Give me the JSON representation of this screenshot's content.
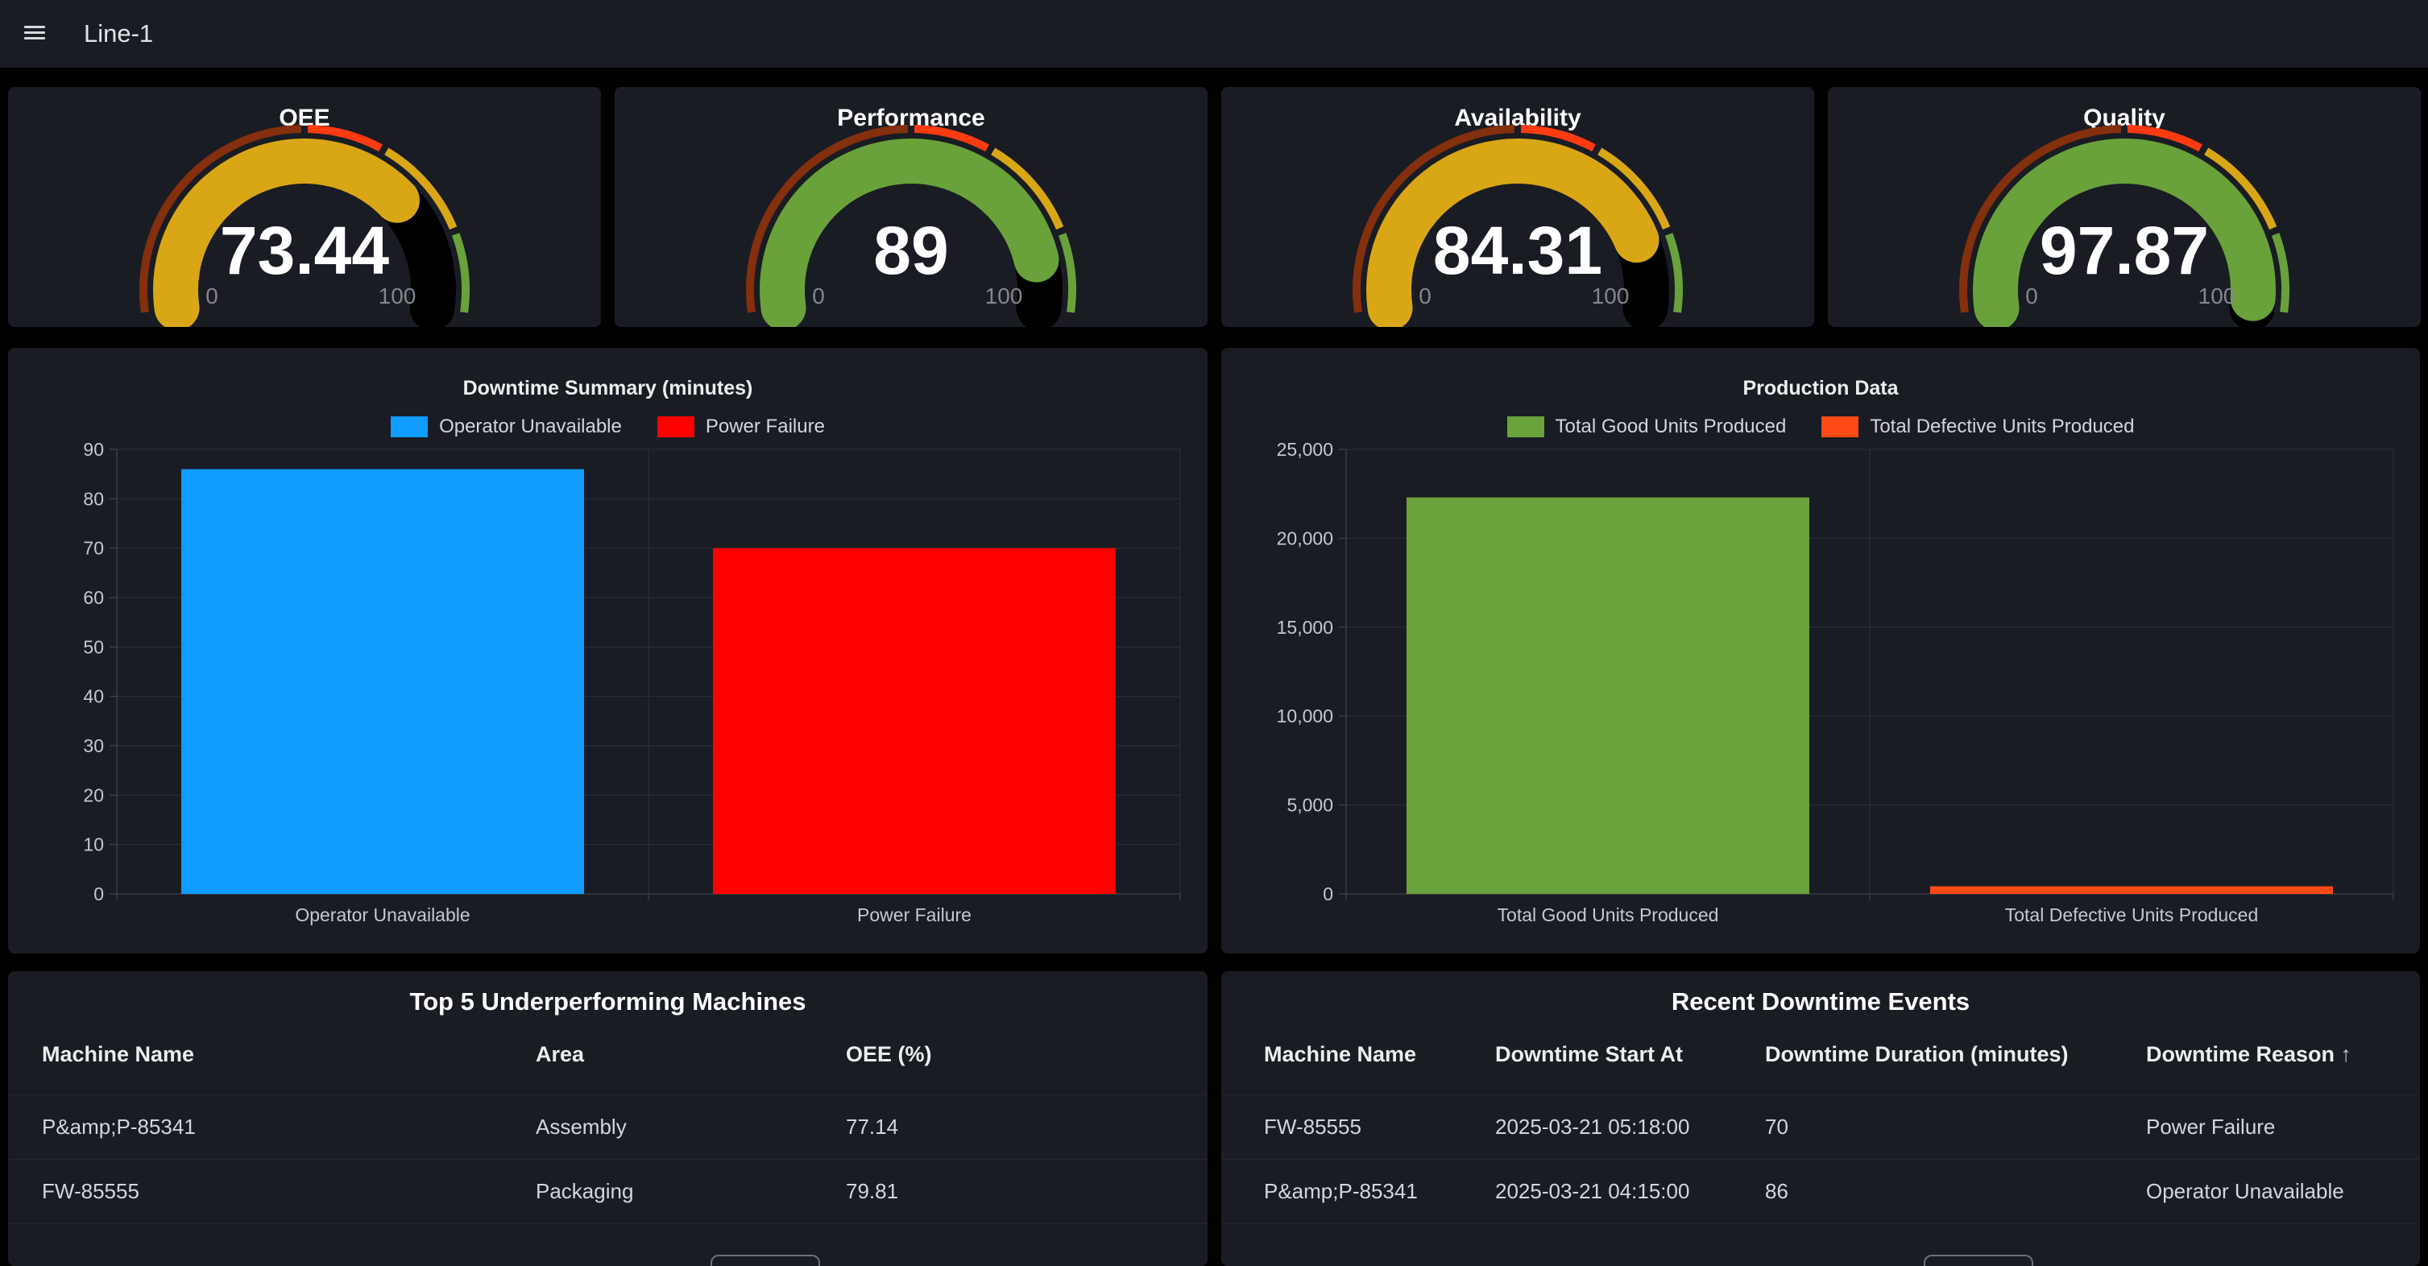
{
  "nav": {
    "title": "Line-1"
  },
  "colors": {
    "page_bg": "#000000",
    "panel_bg": "#191c23",
    "text_primary": "#ffffff",
    "text_secondary": "#c7c8ce",
    "text_muted": "#85878e",
    "grid_line": "#2e3138",
    "axis_line": "#4a4d55",
    "row_separator": "#25272e",
    "gauge_track": "#000000"
  },
  "gauge_thresholds": [
    {
      "to": 50,
      "color": "#842f0d"
    },
    {
      "to": 65,
      "color": "#ff3b12"
    },
    {
      "to": 85,
      "color": "#d9a616"
    },
    {
      "to": 100,
      "color": "#69a23a"
    }
  ],
  "gauges": [
    {
      "title": "OEE",
      "value": 73.44,
      "display": "73.44",
      "arc_color": "#d9a616",
      "min_label": "0",
      "max_label": "100"
    },
    {
      "title": "Performance",
      "value": 89,
      "display": "89",
      "arc_color": "#69a23a",
      "min_label": "0",
      "max_label": "100"
    },
    {
      "title": "Availability",
      "value": 84.31,
      "display": "84.31",
      "arc_color": "#d9a616",
      "min_label": "0",
      "max_label": "100"
    },
    {
      "title": "Quality",
      "value": 97.87,
      "display": "97.87",
      "arc_color": "#69a23a",
      "min_label": "0",
      "max_label": "100"
    }
  ],
  "chart_data": [
    {
      "type": "bar",
      "title": "Downtime Summary (minutes)",
      "categories": [
        "Operator Unavailable",
        "Power Failure"
      ],
      "values": [
        86,
        70
      ],
      "colors": [
        "#0f9bff",
        "#ff0000"
      ],
      "legend": [
        {
          "label": "Operator Unavailable",
          "color": "#0f9bff"
        },
        {
          "label": "Power Failure",
          "color": "#ff0000"
        }
      ],
      "legend_position": "top-center",
      "xlabel": "",
      "ylabel": "",
      "ylim": [
        0,
        90
      ],
      "yticks": [
        0,
        10,
        20,
        30,
        40,
        50,
        60,
        70,
        80,
        90
      ],
      "ytick_labels": [
        "0",
        "10",
        "20",
        "30",
        "40",
        "50",
        "60",
        "70",
        "80",
        "90"
      ],
      "grid": true
    },
    {
      "type": "bar",
      "title": "Production Data",
      "categories": [
        "Total Good Units Produced",
        "Total Defective Units Produced"
      ],
      "values": [
        22300,
        430
      ],
      "colors": [
        "#6aa23b",
        "#ff4a16"
      ],
      "legend": [
        {
          "label": "Total Good Units Produced",
          "color": "#6aa23b"
        },
        {
          "label": "Total Defective Units Produced",
          "color": "#ff4a16"
        }
      ],
      "legend_position": "top-center",
      "xlabel": "",
      "ylabel": "",
      "ylim": [
        0,
        25000
      ],
      "yticks": [
        0,
        5000,
        10000,
        15000,
        20000,
        25000
      ],
      "ytick_labels": [
        "0",
        "5,000",
        "10,000",
        "15,000",
        "20,000",
        "25,000"
      ],
      "grid": true
    }
  ],
  "tables": {
    "underperforming": {
      "title": "Top 5 Underperforming Machines",
      "columns": [
        "Machine Name",
        "Area",
        "OEE (%)"
      ],
      "rows": [
        [
          "P&amp;P-85341",
          "Assembly",
          "77.14"
        ],
        [
          "FW-85555",
          "Packaging",
          "79.81"
        ]
      ]
    },
    "downtime": {
      "title": "Recent Downtime Events",
      "columns": [
        "Machine Name",
        "Downtime Start At",
        "Downtime Duration (minutes)",
        "Downtime Reason"
      ],
      "sorted_column": "Downtime Reason",
      "sort_direction": "ascending",
      "rows": [
        [
          "FW-85555",
          "2025-03-21 05:18:00",
          "70",
          "Power Failure"
        ],
        [
          "P&amp;P-85341",
          "2025-03-21 04:15:00",
          "86",
          "Operator Unavailable"
        ]
      ]
    }
  }
}
